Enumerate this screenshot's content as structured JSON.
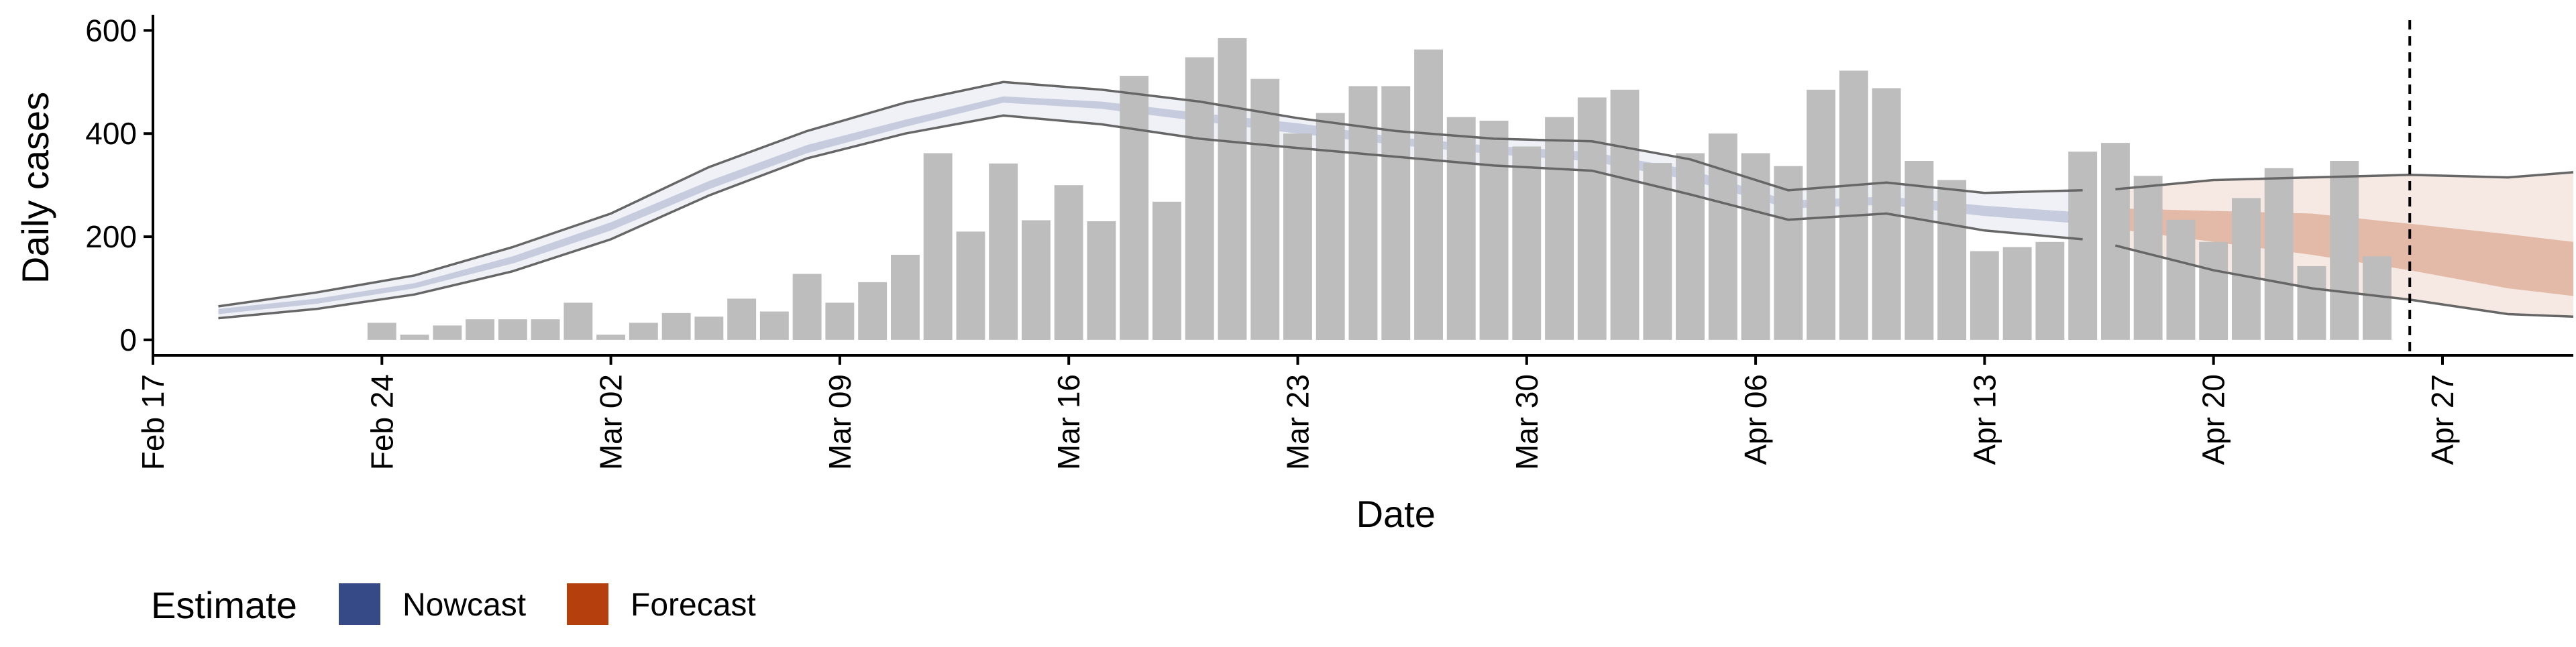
{
  "chart_data": {
    "type": "bar",
    "xlabel": "Date",
    "ylabel": "Daily cases",
    "ylim": [
      -30,
      620
    ],
    "yticks": [
      0,
      200,
      400,
      600
    ],
    "x_range": [
      "2020-02-17",
      "2020-05-01"
    ],
    "xticks": [
      {
        "date": "2020-02-17",
        "label": "Feb 17"
      },
      {
        "date": "2020-02-24",
        "label": "Feb 24"
      },
      {
        "date": "2020-03-02",
        "label": "Mar 02"
      },
      {
        "date": "2020-03-09",
        "label": "Mar 09"
      },
      {
        "date": "2020-03-16",
        "label": "Mar 16"
      },
      {
        "date": "2020-03-23",
        "label": "Mar 23"
      },
      {
        "date": "2020-03-30",
        "label": "Mar 30"
      },
      {
        "date": "2020-04-06",
        "label": "Apr 06"
      },
      {
        "date": "2020-04-13",
        "label": "Apr 13"
      },
      {
        "date": "2020-04-20",
        "label": "Apr 20"
      },
      {
        "date": "2020-04-27",
        "label": "Apr 27"
      }
    ],
    "bars": {
      "start_date": "2020-02-24",
      "values": [
        33,
        10,
        28,
        40,
        40,
        40,
        72,
        10,
        33,
        52,
        45,
        80,
        55,
        128,
        72,
        112,
        165,
        362,
        210,
        342,
        232,
        300,
        230,
        512,
        268,
        548,
        585,
        506,
        400,
        440,
        492,
        492,
        563,
        432,
        425,
        375,
        432,
        470,
        485,
        343,
        362,
        400,
        362,
        337,
        485,
        522,
        488,
        347,
        310,
        172,
        180,
        190,
        365,
        382,
        318,
        233,
        190,
        275,
        333,
        143,
        347,
        162
      ],
      "color": "#bdbdbd"
    },
    "nowcast": {
      "name": "Nowcast",
      "color": "#354a87",
      "dates": [
        "2020-02-19",
        "2020-02-22",
        "2020-02-25",
        "2020-02-28",
        "2020-03-02",
        "2020-03-05",
        "2020-03-08",
        "2020-03-11",
        "2020-03-14",
        "2020-03-17",
        "2020-03-20",
        "2020-03-23",
        "2020-03-26",
        "2020-03-29",
        "2020-04-01",
        "2020-04-04",
        "2020-04-07",
        "2020-04-10",
        "2020-04-13",
        "2020-04-16"
      ],
      "median": [
        55,
        75,
        105,
        155,
        220,
        300,
        370,
        420,
        466,
        455,
        432,
        410,
        385,
        368,
        355,
        320,
        262,
        270,
        250,
        236
      ],
      "inner_lower": [
        50,
        70,
        100,
        148,
        212,
        292,
        362,
        413,
        460,
        448,
        424,
        400,
        378,
        360,
        346,
        310,
        255,
        262,
        240,
        225
      ],
      "inner_upper": [
        60,
        80,
        110,
        162,
        228,
        308,
        378,
        427,
        472,
        462,
        440,
        420,
        393,
        376,
        364,
        330,
        270,
        278,
        260,
        247
      ],
      "outer_lower": [
        42,
        60,
        88,
        133,
        195,
        280,
        352,
        400,
        435,
        418,
        390,
        372,
        355,
        338,
        328,
        282,
        233,
        245,
        212,
        195
      ],
      "outer_upper": [
        65,
        92,
        125,
        180,
        245,
        335,
        405,
        460,
        500,
        485,
        462,
        430,
        405,
        390,
        385,
        350,
        290,
        305,
        285,
        290
      ]
    },
    "forecast": {
      "name": "Forecast",
      "color": "#b5400e",
      "dates": [
        "2020-04-17",
        "2020-04-20",
        "2020-04-23",
        "2020-04-26",
        "2020-04-29",
        "2020-05-01"
      ],
      "median": [
        250,
        225,
        205,
        175,
        150,
        130
      ],
      "inner_lower": [
        215,
        190,
        165,
        135,
        100,
        85
      ],
      "inner_upper": [
        255,
        250,
        245,
        225,
        205,
        190
      ],
      "outer_lower": [
        183,
        135,
        100,
        78,
        50,
        45
      ],
      "outer_upper": [
        292,
        310,
        315,
        320,
        315,
        325
      ]
    },
    "vline": {
      "date": "2020-04-26",
      "style": "dashed"
    },
    "grid": false,
    "legend": {
      "title": "Estimate",
      "placement": "bottom-left",
      "entries": [
        {
          "label": "Nowcast",
          "color": "#354a87"
        },
        {
          "label": "Forecast",
          "color": "#b5400e"
        }
      ]
    }
  }
}
